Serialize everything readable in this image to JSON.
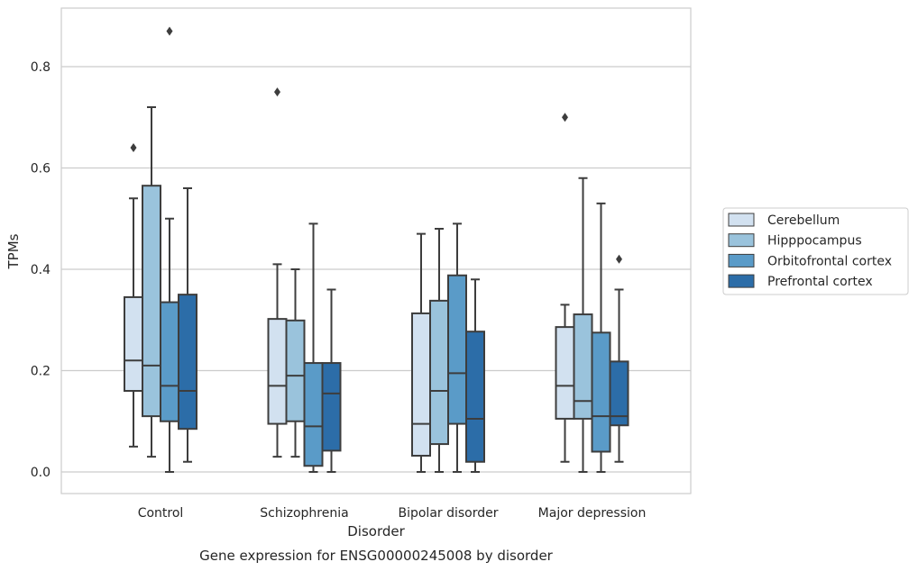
{
  "chart_data": {
    "type": "box",
    "title": "",
    "caption": "Gene expression for ENSG00000245008 by disorder",
    "xlabel": "Disorder",
    "ylabel": "TPMs",
    "ylim": [
      -0.04,
      0.92
    ],
    "yticks": [
      0.0,
      0.2,
      0.4,
      0.6,
      0.8
    ],
    "ytick_labels": [
      "0.0",
      "0.2",
      "0.4",
      "0.6",
      "0.8"
    ],
    "grid": "horizontal",
    "legend_position": "right",
    "categories": [
      "Control",
      "Schizophrenia",
      "Bipolar disorder",
      "Major depression"
    ],
    "series": [
      {
        "name": "Cerebellum",
        "color": "#d2e1f0",
        "boxes": [
          {
            "whisker_low": 0.05,
            "q1": 0.16,
            "median": 0.22,
            "q3": 0.345,
            "whisker_high": 0.54,
            "outliers": [
              0.64
            ]
          },
          {
            "whisker_low": 0.03,
            "q1": 0.095,
            "median": 0.17,
            "q3": 0.302,
            "whisker_high": 0.41,
            "outliers": [
              0.75
            ]
          },
          {
            "whisker_low": 0.0,
            "q1": 0.032,
            "median": 0.095,
            "q3": 0.313,
            "whisker_high": 0.47,
            "outliers": []
          },
          {
            "whisker_low": 0.02,
            "q1": 0.105,
            "median": 0.17,
            "q3": 0.286,
            "whisker_high": 0.33,
            "outliers": [
              0.7
            ]
          }
        ]
      },
      {
        "name": "Hipppocampus",
        "color": "#9ac3dc",
        "boxes": [
          {
            "whisker_low": 0.03,
            "q1": 0.11,
            "median": 0.21,
            "q3": 0.565,
            "whisker_high": 0.72,
            "outliers": []
          },
          {
            "whisker_low": 0.03,
            "q1": 0.1,
            "median": 0.19,
            "q3": 0.299,
            "whisker_high": 0.4,
            "outliers": []
          },
          {
            "whisker_low": 0.0,
            "q1": 0.055,
            "median": 0.16,
            "q3": 0.338,
            "whisker_high": 0.48,
            "outliers": []
          },
          {
            "whisker_low": 0.0,
            "q1": 0.105,
            "median": 0.14,
            "q3": 0.311,
            "whisker_high": 0.58,
            "outliers": []
          }
        ]
      },
      {
        "name": "Orbitofrontal cortex",
        "color": "#5a9bc8",
        "boxes": [
          {
            "whisker_low": 0.0,
            "q1": 0.1,
            "median": 0.17,
            "q3": 0.335,
            "whisker_high": 0.5,
            "outliers": [
              0.87
            ]
          },
          {
            "whisker_low": 0.0,
            "q1": 0.012,
            "median": 0.09,
            "q3": 0.215,
            "whisker_high": 0.49,
            "outliers": []
          },
          {
            "whisker_low": 0.0,
            "q1": 0.095,
            "median": 0.195,
            "q3": 0.388,
            "whisker_high": 0.49,
            "outliers": []
          },
          {
            "whisker_low": 0.0,
            "q1": 0.04,
            "median": 0.11,
            "q3": 0.275,
            "whisker_high": 0.53,
            "outliers": []
          }
        ]
      },
      {
        "name": "Prefrontal cortex",
        "color": "#2c6da8",
        "boxes": [
          {
            "whisker_low": 0.02,
            "q1": 0.085,
            "median": 0.16,
            "q3": 0.35,
            "whisker_high": 0.56,
            "outliers": []
          },
          {
            "whisker_low": 0.0,
            "q1": 0.042,
            "median": 0.155,
            "q3": 0.215,
            "whisker_high": 0.36,
            "outliers": []
          },
          {
            "whisker_low": 0.0,
            "q1": 0.02,
            "median": 0.105,
            "q3": 0.277,
            "whisker_high": 0.38,
            "outliers": []
          },
          {
            "whisker_low": 0.02,
            "q1": 0.092,
            "median": 0.11,
            "q3": 0.218,
            "whisker_high": 0.36,
            "outliers": [
              0.42
            ]
          }
        ]
      }
    ]
  }
}
